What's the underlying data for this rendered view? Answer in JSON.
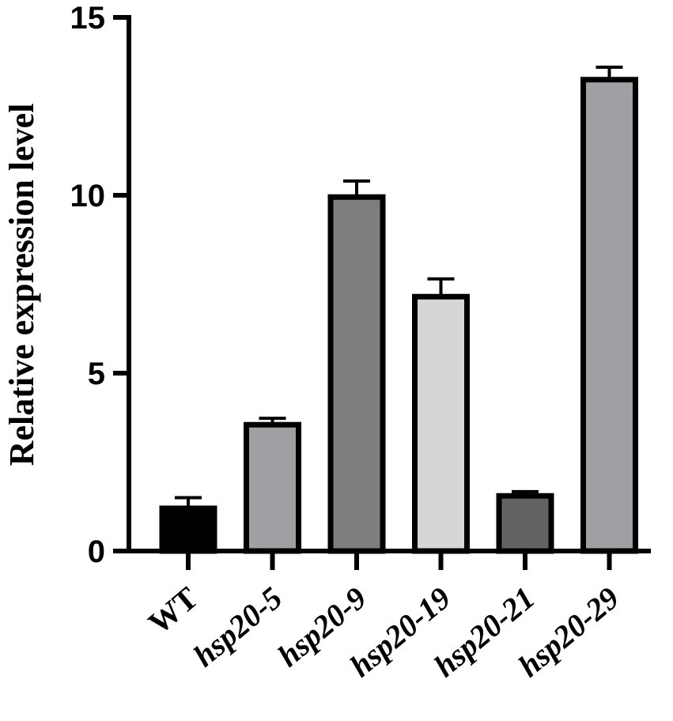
{
  "chart_data": {
    "type": "bar",
    "title": "",
    "xlabel": "",
    "ylabel": "Relative expression level",
    "ylim": [
      0,
      15
    ],
    "yticks": [
      0,
      5,
      10,
      15
    ],
    "grid": false,
    "categories": [
      "WT",
      "hsp20-5",
      "hsp20-9",
      "hsp20-19",
      "hsp20-21",
      "hsp20-29"
    ],
    "category_italic": [
      false,
      true,
      true,
      true,
      true,
      true
    ],
    "values": [
      1.2,
      3.55,
      9.95,
      7.15,
      1.55,
      13.25
    ],
    "errors": [
      0.3,
      0.18,
      0.45,
      0.5,
      0.12,
      0.35
    ],
    "bar_colors": [
      "#000000",
      "#a0a0a4",
      "#7e7e7e",
      "#d6d6d6",
      "#636363",
      "#a0a0a4"
    ],
    "edge_color": "#000000"
  }
}
